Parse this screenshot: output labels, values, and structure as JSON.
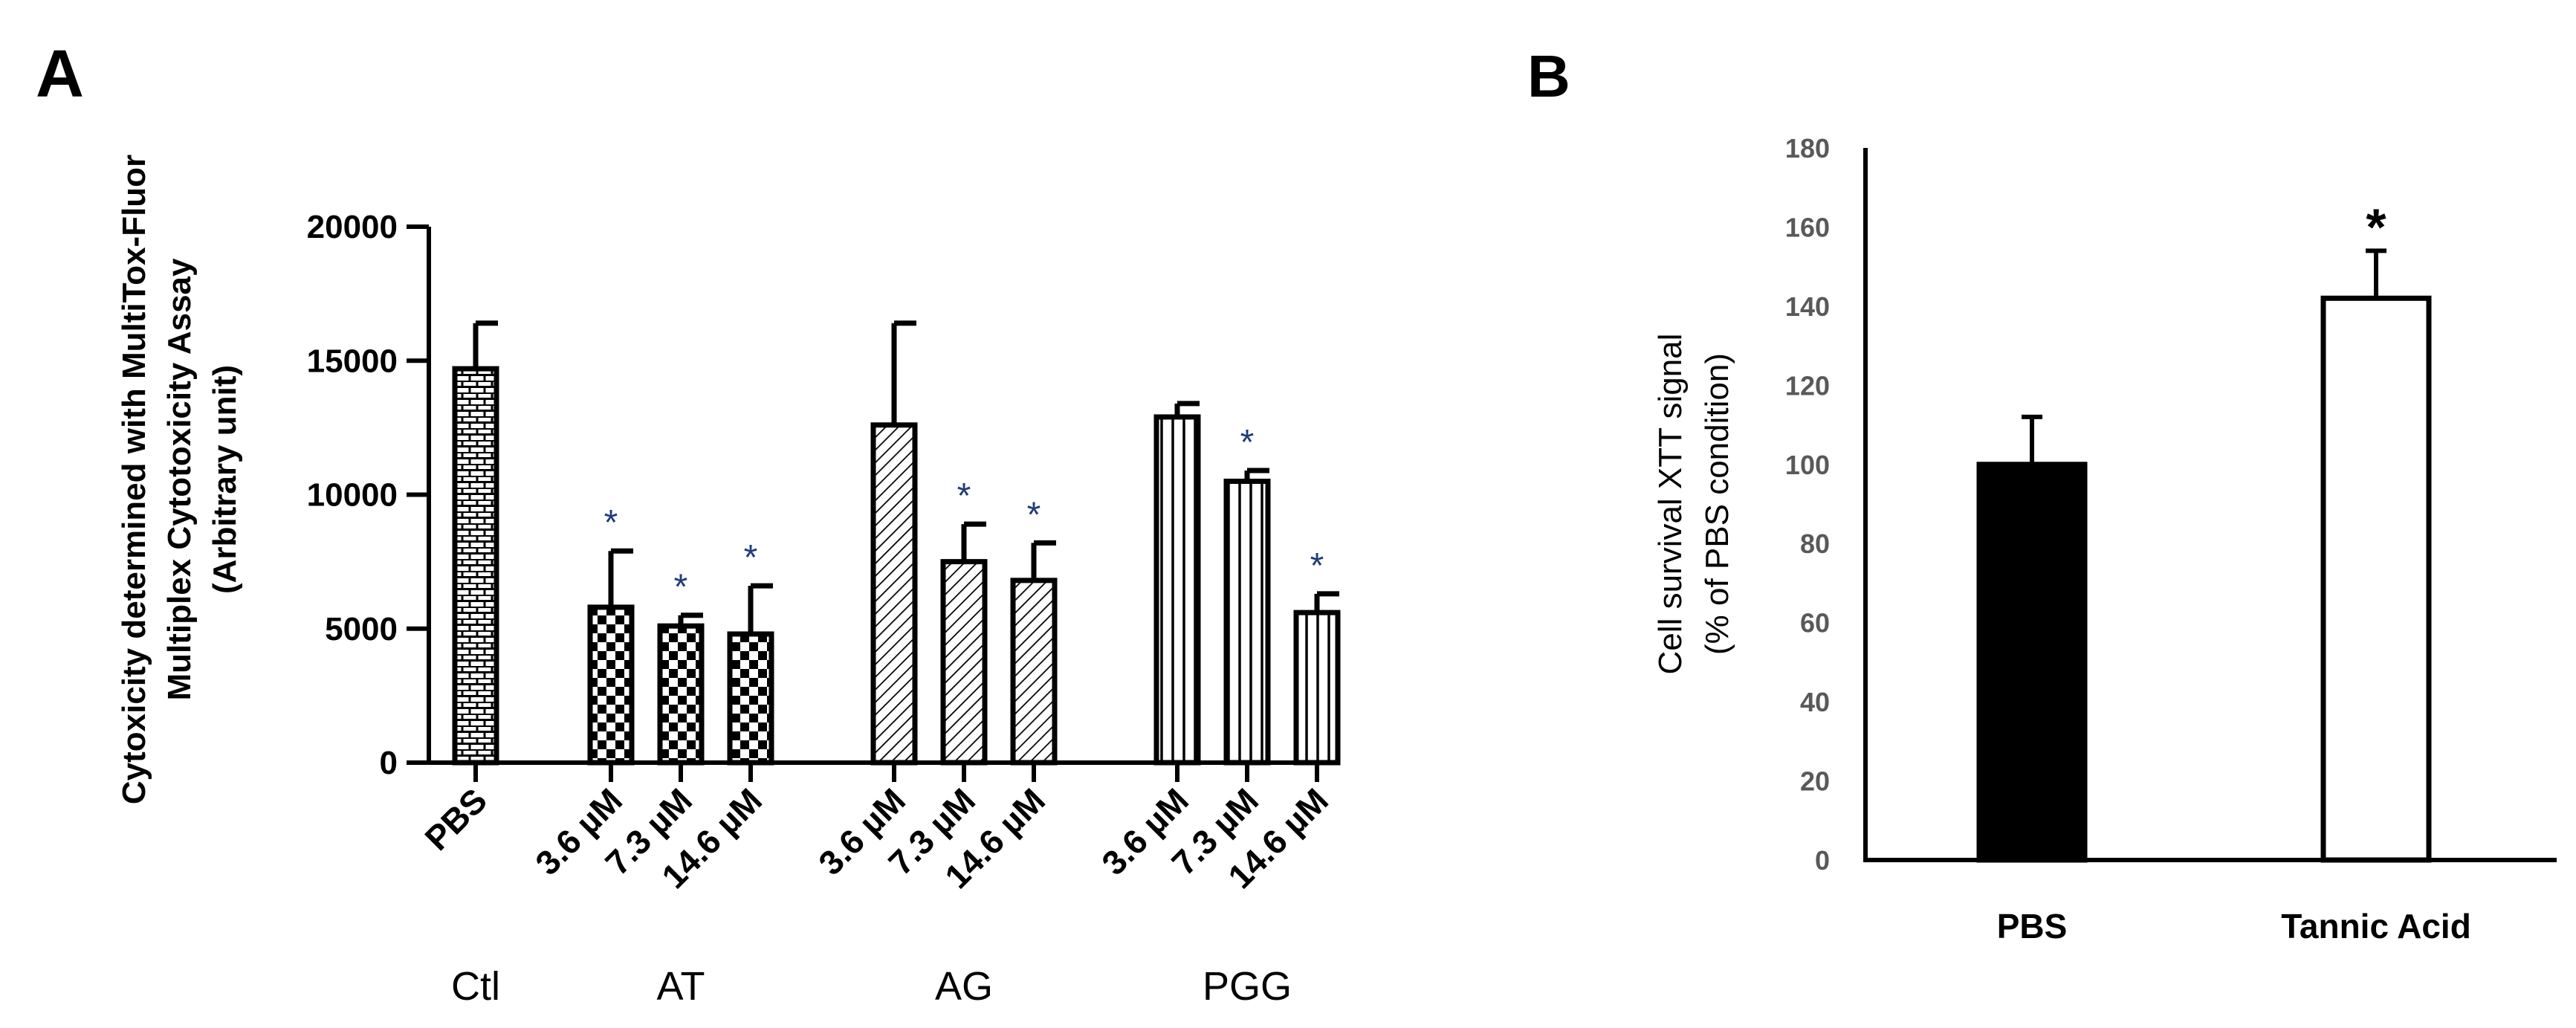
{
  "panels": {
    "a_label": "A",
    "b_label": "B"
  },
  "chart_data": [
    {
      "id": "panel-a",
      "type": "bar",
      "title": "",
      "ylabel_lines": [
        "Cytoxicity determined with MultiTox-Fluor",
        "Multiplex Cytotoxicity Assay",
        "(Arbitrary unit)"
      ],
      "xlabel": "",
      "ylim": [
        0,
        20000
      ],
      "yticks": [
        0,
        5000,
        10000,
        15000,
        20000
      ],
      "ytick_labels": [
        "0",
        "5000",
        "10000",
        "15000",
        "20000"
      ],
      "groups": [
        {
          "name": "Ctl",
          "bars": [
            {
              "label": "PBS",
              "value": 14700,
              "error": 1700,
              "pattern": "brick",
              "significant": false
            }
          ]
        },
        {
          "name": "AT",
          "bars": [
            {
              "label": "3.6 µM",
              "value": 5800,
              "error": 2100,
              "pattern": "checker",
              "significant": true
            },
            {
              "label": "7.3 µM",
              "value": 5100,
              "error": 400,
              "pattern": "checker",
              "significant": true
            },
            {
              "label": "14.6 µM",
              "value": 4800,
              "error": 1800,
              "pattern": "checker",
              "significant": true
            }
          ]
        },
        {
          "name": "AG",
          "bars": [
            {
              "label": "3.6 µM",
              "value": 12600,
              "error": 3800,
              "pattern": "diagonal",
              "significant": false
            },
            {
              "label": "7.3 µM",
              "value": 7500,
              "error": 1400,
              "pattern": "diagonal",
              "significant": true
            },
            {
              "label": "14.6 µM",
              "value": 6800,
              "error": 1400,
              "pattern": "diagonal",
              "significant": true
            }
          ]
        },
        {
          "name": "PGG",
          "bars": [
            {
              "label": "3.6 µM",
              "value": 12900,
              "error": 500,
              "pattern": "vertical",
              "significant": false
            },
            {
              "label": "7.3 µM",
              "value": 10500,
              "error": 400,
              "pattern": "vertical",
              "significant": true
            },
            {
              "label": "14.6 µM",
              "value": 5600,
              "error": 700,
              "pattern": "vertical",
              "significant": true
            }
          ]
        }
      ],
      "significance_marker": "*"
    },
    {
      "id": "panel-b",
      "type": "bar",
      "title": "",
      "ylabel_lines": [
        "Cell survival XTT signal",
        "(% of PBS condition)"
      ],
      "xlabel": "",
      "ylim": [
        0,
        180
      ],
      "yticks": [
        0,
        20,
        40,
        60,
        80,
        100,
        120,
        140,
        160,
        180
      ],
      "ytick_labels": [
        "0",
        "20",
        "40",
        "60",
        "80",
        "100",
        "120",
        "140",
        "160",
        "180"
      ],
      "categories": [
        "PBS",
        "Tannic Acid"
      ],
      "values": [
        100,
        142
      ],
      "errors": [
        12,
        12
      ],
      "fills": [
        "#000000",
        "#ffffff"
      ],
      "significant": [
        false,
        true
      ],
      "significance_marker": "*"
    }
  ]
}
